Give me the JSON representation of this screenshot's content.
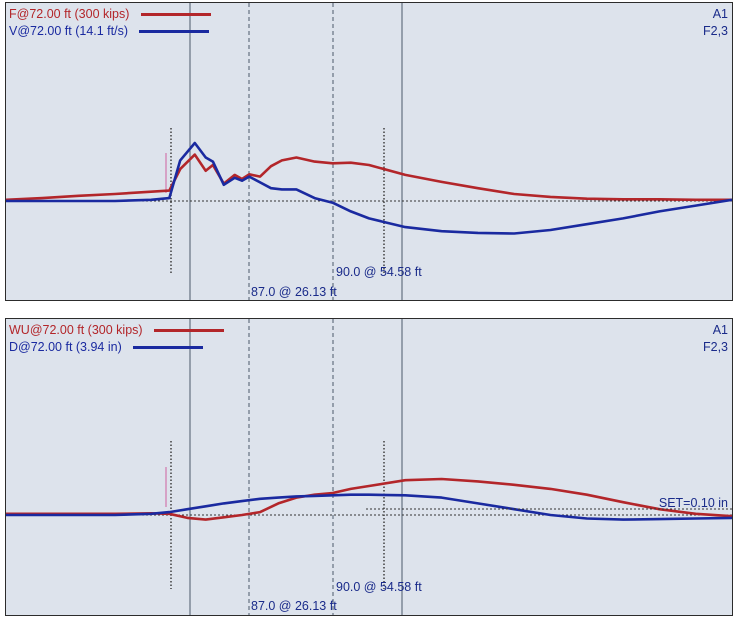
{
  "colors": {
    "force": "#b3262a",
    "velocity": "#1a2aa0",
    "text_blue": "#1a2b8a",
    "background": "#dde3ec"
  },
  "chart_data": [
    {
      "type": "line",
      "panel": "top",
      "legend": [
        {
          "label": "F@72.00 ft (300 kips)",
          "color": "#b3262a"
        },
        {
          "label": "V@72.00 ft (14.1 ft/s)",
          "color": "#1a2aa0"
        }
      ],
      "tags": [
        "A1",
        "F2,3"
      ],
      "markers": [
        {
          "label": "90.0 @ 54.58 ft"
        },
        {
          "label": "87.0 @ 26.13 ft"
        }
      ],
      "x": [
        0,
        10,
        20,
        30,
        40,
        45,
        48,
        52,
        55,
        57,
        60,
        63,
        65,
        67,
        70,
        73,
        76,
        80,
        85,
        90,
        95,
        100,
        110,
        120,
        130,
        140,
        150,
        160,
        170,
        180,
        190,
        200
      ],
      "series": [
        {
          "name": "F@72.00 ft (300 kips)",
          "values": [
            0.02,
            0.05,
            0.09,
            0.12,
            0.16,
            0.18,
            0.55,
            0.8,
            0.52,
            0.62,
            0.3,
            0.45,
            0.38,
            0.46,
            0.42,
            0.6,
            0.7,
            0.75,
            0.68,
            0.65,
            0.66,
            0.62,
            0.45,
            0.33,
            0.22,
            0.12,
            0.07,
            0.04,
            0.03,
            0.03,
            0.02,
            0.02
          ]
        },
        {
          "name": "V@72.00 ft (14.1 ft/s)",
          "values": [
            0.0,
            0.0,
            0.0,
            0.0,
            0.02,
            0.05,
            0.7,
            1.0,
            0.75,
            0.68,
            0.28,
            0.4,
            0.35,
            0.42,
            0.32,
            0.22,
            0.2,
            0.2,
            0.05,
            -0.03,
            -0.18,
            -0.3,
            -0.45,
            -0.52,
            -0.55,
            -0.56,
            -0.5,
            -0.4,
            -0.3,
            -0.18,
            -0.08,
            0.02
          ]
        }
      ]
    },
    {
      "type": "line",
      "panel": "bottom",
      "legend": [
        {
          "label": "WU@72.00 ft (300 kips)",
          "color": "#b3262a"
        },
        {
          "label": "D@72.00 ft (3.94 in)",
          "color": "#1a2aa0"
        }
      ],
      "tags": [
        "A1",
        "F2,3"
      ],
      "annotation": "SET=0.10 in",
      "markers": [
        {
          "label": "90.0 @ 54.58 ft"
        },
        {
          "label": "87.0 @ 26.13 ft"
        }
      ],
      "x": [
        0,
        10,
        20,
        30,
        40,
        45,
        50,
        55,
        60,
        65,
        70,
        75,
        80,
        85,
        90,
        95,
        100,
        110,
        120,
        130,
        140,
        150,
        160,
        170,
        180,
        190,
        200
      ],
      "series": [
        {
          "name": "WU@72.00 ft (300 kips)",
          "values": [
            0.02,
            0.02,
            0.02,
            0.02,
            0.03,
            0.02,
            -0.05,
            -0.08,
            -0.04,
            0.0,
            0.05,
            0.2,
            0.3,
            0.35,
            0.38,
            0.45,
            0.5,
            0.6,
            0.62,
            0.58,
            0.52,
            0.45,
            0.35,
            0.22,
            0.1,
            0.02,
            -0.02
          ]
        },
        {
          "name": "D@72.00 ft (3.94 in)",
          "values": [
            0.0,
            0.0,
            0.0,
            0.0,
            0.02,
            0.05,
            0.1,
            0.15,
            0.2,
            0.24,
            0.28,
            0.3,
            0.32,
            0.33,
            0.34,
            0.35,
            0.35,
            0.34,
            0.3,
            0.2,
            0.1,
            0.0,
            -0.06,
            -0.08,
            -0.07,
            -0.06,
            -0.05
          ]
        }
      ]
    }
  ]
}
